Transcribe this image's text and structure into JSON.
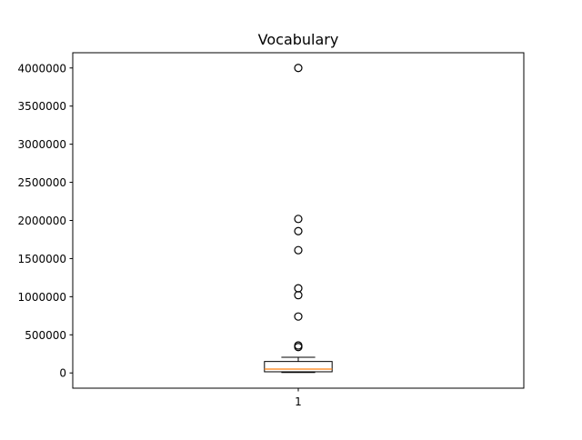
{
  "chart_data": {
    "type": "box",
    "title": "Vocabulary",
    "xlabel": "",
    "ylabel": "",
    "categories": [
      "1"
    ],
    "ylim": [
      -200000,
      4200000
    ],
    "yticks": [
      0,
      500000,
      1000000,
      1500000,
      2000000,
      2500000,
      3000000,
      3500000,
      4000000
    ],
    "ytick_labels": [
      "0",
      "500000",
      "1000000",
      "1500000",
      "2000000",
      "2500000",
      "3000000",
      "3500000",
      "4000000"
    ],
    "grid": false,
    "boxes": [
      {
        "category": "1",
        "whisker_low": 5000,
        "q1": 15000,
        "median": 50000,
        "q3": 150000,
        "whisker_high": 205000,
        "outliers": [
          340000,
          360000,
          740000,
          1020000,
          1110000,
          1610000,
          1860000,
          2020000,
          4000000
        ]
      }
    ],
    "colors": {
      "box": "#000000",
      "median": "#ff7f0e",
      "outlier_edge": "#000000"
    }
  }
}
